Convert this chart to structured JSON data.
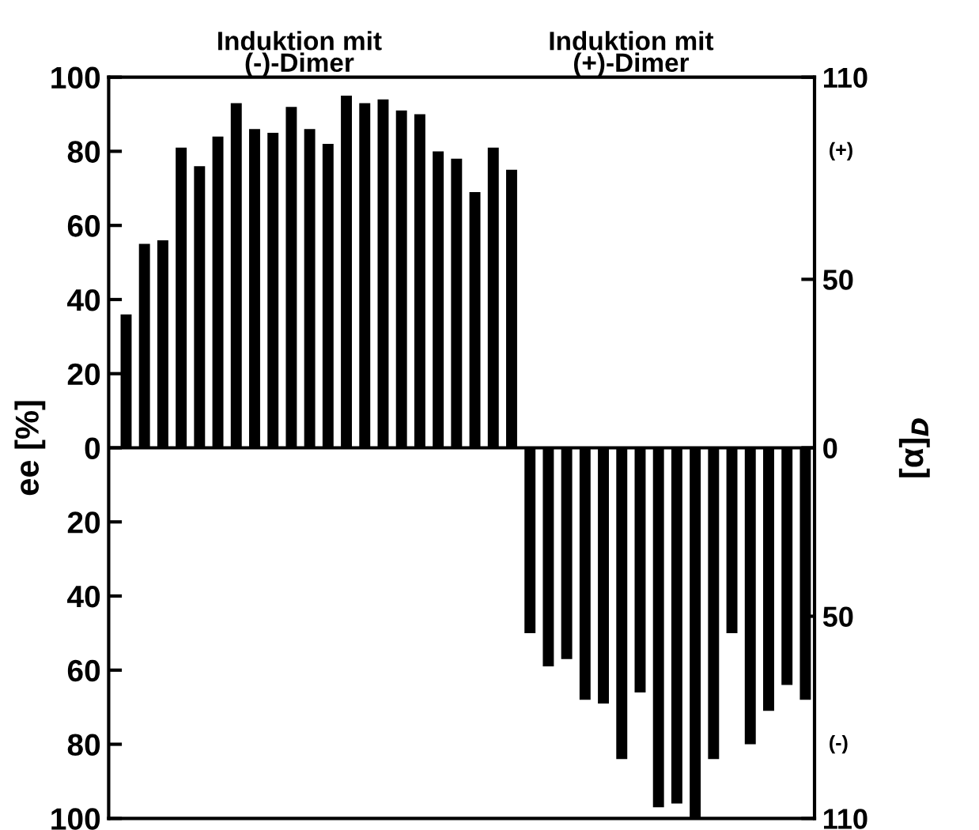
{
  "chart_data": {
    "type": "bar",
    "categories": [
      null,
      null,
      null,
      null,
      null,
      null,
      null,
      null,
      null,
      null,
      null,
      null,
      null,
      null,
      null,
      null,
      null,
      null,
      null,
      null,
      null,
      null,
      null,
      null,
      null,
      null,
      null,
      null,
      null,
      null,
      null,
      null,
      null,
      null,
      null,
      null,
      null,
      null
    ],
    "series": [
      {
        "color": "#000000",
        "values": [
          36,
          55,
          56,
          81,
          76,
          84,
          93,
          86,
          85,
          92,
          86,
          82,
          95,
          93,
          94,
          91,
          90,
          80,
          78,
          69,
          81,
          75,
          -50,
          -59,
          -57,
          -68,
          -69,
          -84,
          -66,
          -97,
          -96,
          -100,
          -84,
          -50,
          -80,
          -71,
          -64,
          -68
        ]
      }
    ],
    "ylabel": "ee [%]",
    "y2label": "[α]$_{D}$",
    "ylim": [
      -100,
      100
    ],
    "yticks": [
      {
        "value": -100,
        "label": "100"
      },
      {
        "value": -80,
        "label": "80"
      },
      {
        "value": -60,
        "label": "60"
      },
      {
        "value": -40,
        "label": "40"
      },
      {
        "value": -20,
        "label": "20"
      },
      0,
      20,
      40,
      60,
      80,
      100
    ],
    "y2lim": [
      -110,
      110
    ],
    "y2ticks": [
      {
        "value": -110,
        "label": "110"
      },
      {
        "value": -50,
        "label": "50"
      },
      0,
      50,
      110
    ],
    "ref_lines": [
      {
        "axis": "y",
        "value": 0,
        "color": "#000000"
      }
    ],
    "annotations": [
      "Induktion mit\n(-)-Dimer",
      "Induktion mit\n(+)-Dimer",
      "(+)",
      "(-)"
    ],
    "grid": false,
    "legend": false
  }
}
